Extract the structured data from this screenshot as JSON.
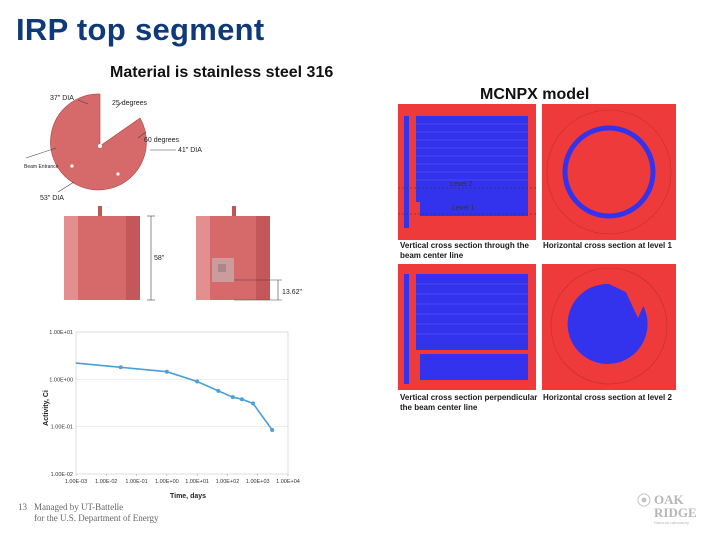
{
  "slide": {
    "title": "IRP top segment",
    "subtitle": "Material is stainless steel 316",
    "mcnpx_title": "MCNPX model"
  },
  "drawing": {
    "labels": {
      "dia37": "37\" DIA",
      "deg25": "25 degrees",
      "deg60": "60 degrees",
      "dia41": "41\" DIA",
      "beam_entrance": "Beam Entrance",
      "dia53": "53\" DIA",
      "height58": "58\"",
      "height13": "13.62\""
    },
    "colors": {
      "body": "#d66a6a",
      "side_light": "#e8a0a0",
      "side_dark": "#c25656"
    }
  },
  "mcnpx": {
    "captions": {
      "vert_center": [
        "Vertical cross section through the",
        "beam center line"
      ],
      "horiz_level1": "Horizontal cross section at level 1",
      "vert_perp": [
        "Vertical cross section perpendicular",
        "the beam center line"
      ],
      "horiz_level2": "Horizontal cross section at level 2"
    },
    "levels": {
      "level2": "Level 2",
      "level1": "Level 1"
    },
    "colors": {
      "red": "#ee3a3a",
      "blue": "#3333ee"
    }
  },
  "chart_data": {
    "type": "line",
    "xscale": "log",
    "yscale": "log",
    "xlabel": "Time, days",
    "ylabel": "Activity, Ci",
    "xlim": [
      0.001,
      10000
    ],
    "ylim": [
      0.01,
      10
    ],
    "x_ticks": [
      "1.00E-03",
      "1.00E-02",
      "1.00E-01",
      "1.00E+00",
      "1.00E+01",
      "1.00E+02",
      "1.00E+03",
      "1.00E+04"
    ],
    "y_ticks": [
      "1.00E-02",
      "1.00E-01",
      "1.00E+00",
      "1.00E+01"
    ],
    "series": [
      {
        "x": [
          0.001,
          0.03,
          1.0,
          10,
          50,
          150,
          300,
          700,
          3000
        ],
        "y": [
          2.2,
          1.8,
          1.45,
          0.9,
          0.57,
          0.42,
          0.38,
          0.31,
          0.085
        ],
        "color": "#4aa0d8"
      }
    ]
  },
  "footer": {
    "page_number": "13",
    "line1": "Managed by UT-Battelle",
    "line2": "for the U.S. Department of Energy"
  },
  "logo": {
    "line1": "OAK",
    "line2": "RIDGE",
    "line3": "National Laboratory"
  }
}
